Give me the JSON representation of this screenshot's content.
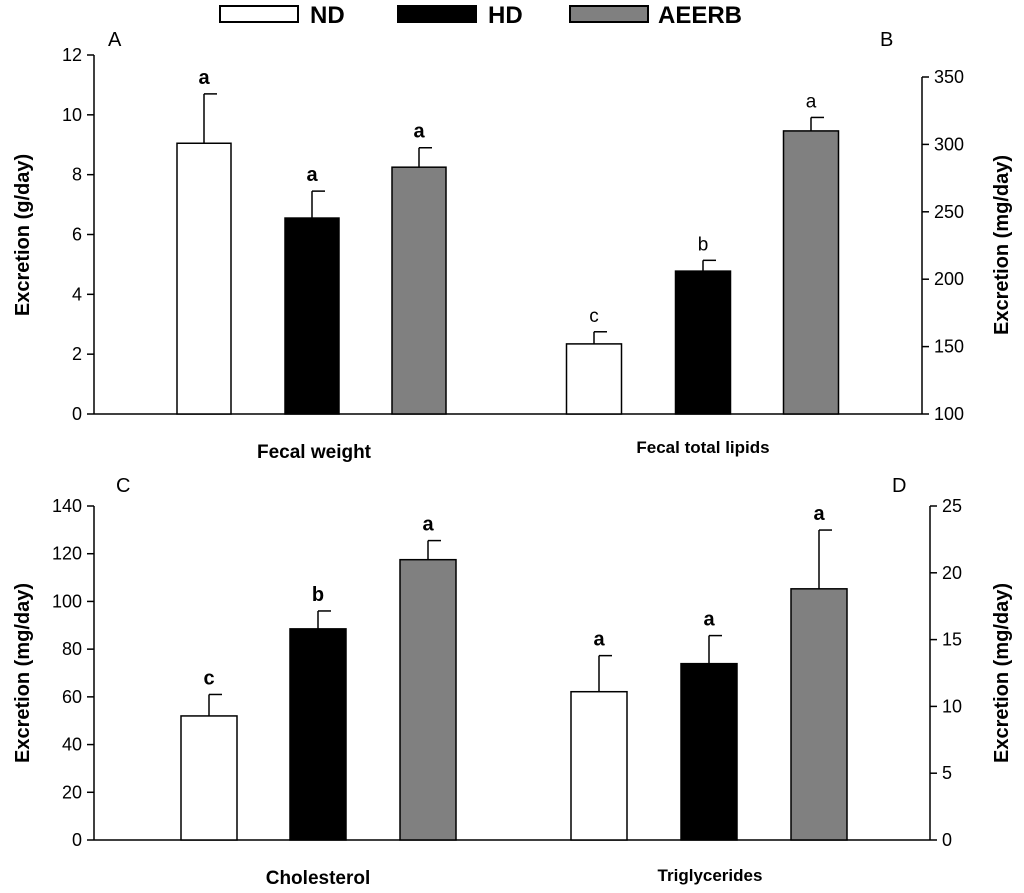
{
  "legend": {
    "entries": [
      {
        "label": "ND",
        "color": "#ffffff"
      },
      {
        "label": "HD",
        "color": "#000000"
      },
      {
        "label": "AEERB",
        "color": "#808080"
      }
    ]
  },
  "chart_data": [
    {
      "type": "bar",
      "panel": "A",
      "category": "Fecal weight",
      "ylabel": "Excretion (g/day)",
      "ylim": [
        0,
        12
      ],
      "yticks": [
        "0",
        "2",
        "4",
        "6",
        "8",
        "10",
        "12"
      ],
      "series": [
        {
          "name": "ND",
          "value": 9.05,
          "error": 1.65,
          "sig": "a"
        },
        {
          "name": "HD",
          "value": 6.55,
          "error": 0.9,
          "sig": "a"
        },
        {
          "name": "AEERB",
          "value": 8.25,
          "error": 0.65,
          "sig": "a"
        }
      ]
    },
    {
      "type": "bar",
      "panel": "B",
      "category": "Fecal total lipids",
      "ylabel": "Excretion (mg/day)",
      "ylim": [
        100,
        350
      ],
      "yticks": [
        "100",
        "150",
        "200",
        "250",
        "300",
        "350"
      ],
      "series": [
        {
          "name": "ND",
          "value": 152,
          "error": 9,
          "sig": "c"
        },
        {
          "name": "HD",
          "value": 206,
          "error": 8,
          "sig": "b"
        },
        {
          "name": "AEERB",
          "value": 310,
          "error": 10,
          "sig": "a"
        }
      ]
    },
    {
      "type": "bar",
      "panel": "C",
      "category": "Cholesterol",
      "ylabel": "Excretion (mg/day)",
      "ylim": [
        0,
        140
      ],
      "yticks": [
        "0",
        "20",
        "40",
        "60",
        "80",
        "100",
        "120",
        "140"
      ],
      "series": [
        {
          "name": "ND",
          "value": 52,
          "error": 9,
          "sig": "c"
        },
        {
          "name": "HD",
          "value": 88.5,
          "error": 7.5,
          "sig": "b"
        },
        {
          "name": "AEERB",
          "value": 117.5,
          "error": 8,
          "sig": "a"
        }
      ]
    },
    {
      "type": "bar",
      "panel": "D",
      "category": "Triglycerides",
      "ylabel": "Excretion (mg/day)",
      "ylim": [
        0,
        25
      ],
      "yticks": [
        "0",
        "5",
        "10",
        "15",
        "20",
        "25"
      ],
      "series": [
        {
          "name": "ND",
          "value": 11.1,
          "error": 2.7,
          "sig": "a"
        },
        {
          "name": "HD",
          "value": 13.2,
          "error": 2.1,
          "sig": "a"
        },
        {
          "name": "AEERB",
          "value": 18.8,
          "error": 4.4,
          "sig": "a"
        }
      ]
    }
  ]
}
